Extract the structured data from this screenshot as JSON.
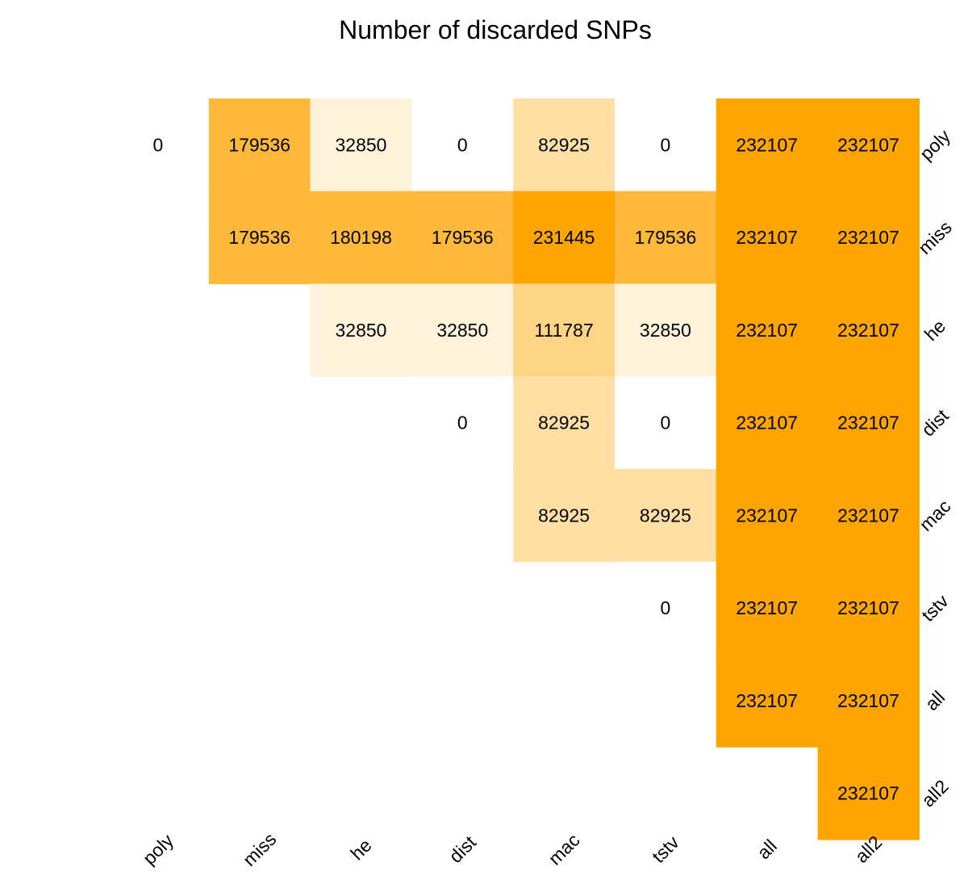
{
  "chart_data": {
    "type": "heatmap",
    "title": "Number of discarded SNPs",
    "x_categories": [
      "poly",
      "miss",
      "he",
      "dist",
      "mac",
      "tstv",
      "all",
      "all2"
    ],
    "y_categories": [
      "poly",
      "miss",
      "he",
      "dist",
      "mac",
      "tstv",
      "all",
      "all2"
    ],
    "value_max": 232107,
    "colors": {
      "low": "#ffffff",
      "high": "#ffa500"
    },
    "values": [
      [
        0,
        179536,
        32850,
        0,
        82925,
        0,
        232107,
        232107
      ],
      [
        null,
        179536,
        180198,
        179536,
        231445,
        179536,
        232107,
        232107
      ],
      [
        null,
        null,
        32850,
        32850,
        111787,
        32850,
        232107,
        232107
      ],
      [
        null,
        null,
        null,
        0,
        82925,
        0,
        232107,
        232107
      ],
      [
        null,
        null,
        null,
        null,
        82925,
        82925,
        232107,
        232107
      ],
      [
        null,
        null,
        null,
        null,
        null,
        0,
        232107,
        232107
      ],
      [
        null,
        null,
        null,
        null,
        null,
        null,
        232107,
        232107
      ],
      [
        null,
        null,
        null,
        null,
        null,
        null,
        null,
        232107
      ]
    ]
  }
}
